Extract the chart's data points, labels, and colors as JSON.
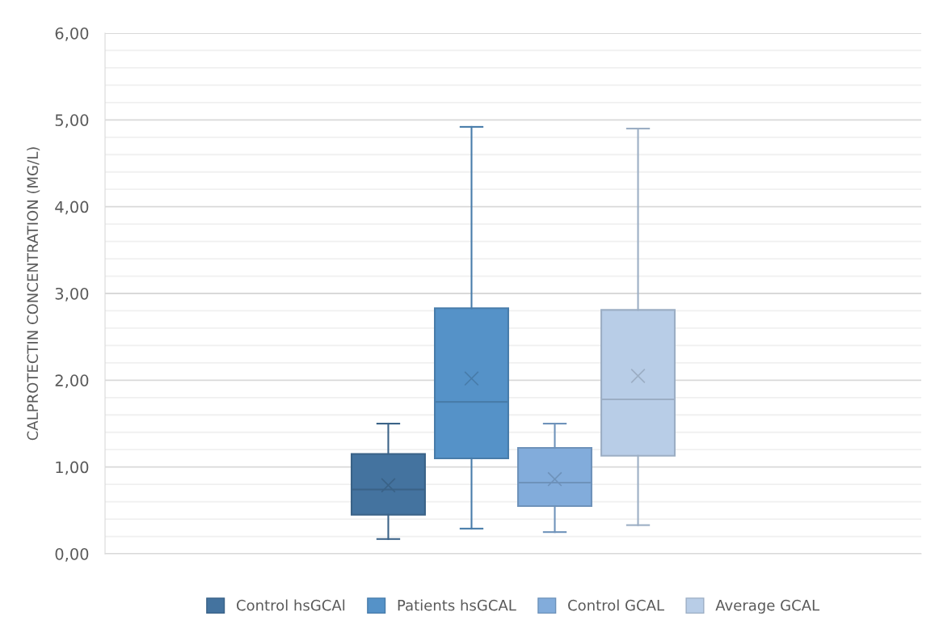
{
  "chart_data": {
    "type": "box",
    "ylabel": "CALPROTECTIN CONCENTRATION (MG/L)",
    "categories": [
      null
    ],
    "series": [
      {
        "name": "Control hsGCAl",
        "color": "#44739f",
        "boxes": [
          {
            "low": 0.17,
            "q1": 0.45,
            "median": 0.74,
            "q3": 1.15,
            "high": 1.5,
            "mean": 0.79
          }
        ]
      },
      {
        "name": "Patients hsGCAL",
        "color": "#5592c8",
        "boxes": [
          {
            "low": 0.29,
            "q1": 1.1,
            "median": 1.75,
            "q3": 2.83,
            "high": 4.92,
            "mean": 2.02
          }
        ]
      },
      {
        "name": "Control GCAL",
        "color": "#82acdb",
        "boxes": [
          {
            "low": 0.25,
            "q1": 0.55,
            "median": 0.82,
            "q3": 1.22,
            "high": 1.5,
            "mean": 0.86
          }
        ]
      },
      {
        "name": "Average GCAL",
        "color": "#b8cde7",
        "boxes": [
          {
            "low": 0.33,
            "q1": 1.13,
            "median": 1.78,
            "q3": 2.81,
            "high": 4.9,
            "mean": 2.05
          }
        ]
      }
    ],
    "ylim": [
      0,
      6
    ],
    "yticks": [
      {
        "value": 0,
        "label": "0,00"
      },
      {
        "value": 0.2,
        "label": null
      },
      {
        "value": 0.4,
        "label": null
      },
      {
        "value": 0.6,
        "label": null
      },
      {
        "value": 0.8,
        "label": null
      },
      {
        "value": 1,
        "label": "1,00"
      },
      {
        "value": 1.2,
        "label": null
      },
      {
        "value": 1.4,
        "label": null
      },
      {
        "value": 1.6,
        "label": null
      },
      {
        "value": 1.8,
        "label": null
      },
      {
        "value": 2,
        "label": "2,00"
      },
      {
        "value": 2.2,
        "label": null
      },
      {
        "value": 2.4,
        "label": null
      },
      {
        "value": 2.6,
        "label": null
      },
      {
        "value": 2.8,
        "label": null
      },
      {
        "value": 3,
        "label": "3,00"
      },
      {
        "value": 3.2,
        "label": null
      },
      {
        "value": 3.4,
        "label": null
      },
      {
        "value": 3.6,
        "label": null
      },
      {
        "value": 3.8,
        "label": null
      },
      {
        "value": 4,
        "label": "4,00"
      },
      {
        "value": 4.2,
        "label": null
      },
      {
        "value": 4.4,
        "label": null
      },
      {
        "value": 4.6,
        "label": null
      },
      {
        "value": 4.8,
        "label": null
      },
      {
        "value": 5,
        "label": "5,00"
      },
      {
        "value": 5.2,
        "label": null
      },
      {
        "value": 5.4,
        "label": null
      },
      {
        "value": 5.6,
        "label": null
      },
      {
        "value": 5.8,
        "label": null
      },
      {
        "value": 6,
        "label": "6,00"
      }
    ],
    "grid": "y",
    "legend": "bottom",
    "marker": "cross"
  }
}
